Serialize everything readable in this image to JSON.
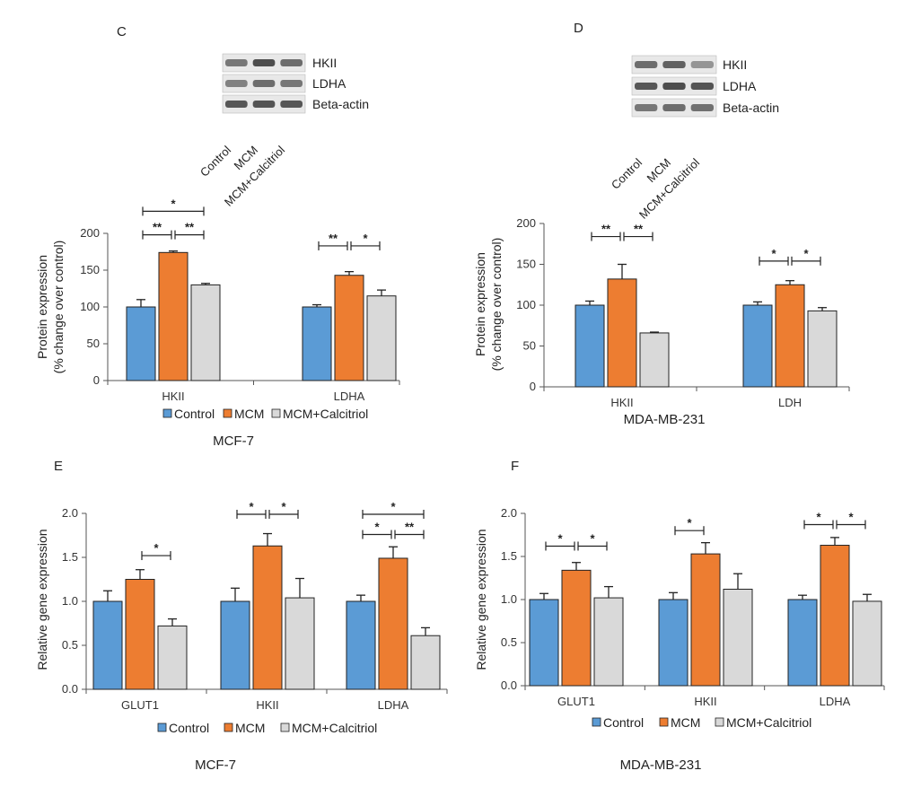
{
  "colors": {
    "control": "#5B9BD5",
    "mcm": "#ED7D31",
    "calcitriol": "#D9D9D9",
    "bar_stroke": "#222222",
    "axis": "#555555"
  },
  "legend_labels": [
    "Control",
    "MCM",
    "MCM+Calcitriol"
  ],
  "blots": [
    {
      "panel": "C",
      "bands": [
        "HKII",
        "LDHA",
        "Beta-actin"
      ],
      "lanes": [
        "Control",
        "MCM",
        "MCM+Calcitriol"
      ]
    },
    {
      "panel": "D",
      "bands": [
        "HKII",
        "LDHA",
        "Beta-actin"
      ],
      "lanes": [
        "Control",
        "MCM",
        "MCM+Calcitriol"
      ]
    }
  ],
  "chart_data": [
    {
      "panel": "C",
      "type": "bar",
      "caption": "MCF-7",
      "ylabel_lines": [
        "Protein expression",
        "(% change over control)"
      ],
      "categories": [
        "HKII",
        "LDHA"
      ],
      "ylim": [
        0,
        200
      ],
      "yticks": [
        "0",
        "50",
        "100",
        "150",
        "200"
      ],
      "series": [
        {
          "name": "Control",
          "values": [
            100,
            100
          ],
          "errors": [
            10,
            3
          ]
        },
        {
          "name": "MCM",
          "values": [
            174,
            143
          ],
          "errors": [
            2,
            5
          ]
        },
        {
          "name": "MCM+Calcitriol",
          "values": [
            130,
            115
          ],
          "errors": [
            2,
            8
          ]
        }
      ],
      "significance": [
        {
          "category": 0,
          "from": 0,
          "to": 2,
          "label": "*",
          "y": 230
        },
        {
          "category": 0,
          "from": 0,
          "to": 1,
          "label": "**",
          "y": 198
        },
        {
          "category": 0,
          "from": 1,
          "to": 2,
          "label": "**",
          "y": 198
        },
        {
          "category": 1,
          "from": 0,
          "to": 1,
          "label": "**",
          "y": 183
        },
        {
          "category": 1,
          "from": 1,
          "to": 2,
          "label": "*",
          "y": 183
        }
      ]
    },
    {
      "panel": "D",
      "type": "bar",
      "caption": "MDA-MB-231",
      "ylabel_lines": [
        "Protein expression",
        "(% change over control)"
      ],
      "categories": [
        "HKII",
        "LDH"
      ],
      "ylim": [
        0,
        200
      ],
      "yticks": [
        "0",
        "50",
        "100",
        "150",
        "200"
      ],
      "series": [
        {
          "name": "Control",
          "values": [
            100,
            100
          ],
          "errors": [
            5,
            4
          ]
        },
        {
          "name": "MCM",
          "values": [
            132,
            125
          ],
          "errors": [
            18,
            5
          ]
        },
        {
          "name": "MCM+Calcitriol",
          "values": [
            66,
            93
          ],
          "errors": [
            1,
            4
          ]
        }
      ],
      "significance": [
        {
          "category": 0,
          "from": 0,
          "to": 1,
          "label": "**",
          "y": 184
        },
        {
          "category": 0,
          "from": 1,
          "to": 2,
          "label": "**",
          "y": 184
        },
        {
          "category": 1,
          "from": 0,
          "to": 1,
          "label": "*",
          "y": 154
        },
        {
          "category": 1,
          "from": 1,
          "to": 2,
          "label": "*",
          "y": 154
        }
      ]
    },
    {
      "panel": "E",
      "type": "bar",
      "caption": "MCF-7",
      "ylabel_lines": [
        "Relative gene expression"
      ],
      "categories": [
        "GLUT1",
        "HKII",
        "LDHA"
      ],
      "ylim": [
        0,
        2.0
      ],
      "yticks": [
        "0.0",
        "0.5",
        "1.0",
        "1.5",
        "2.0"
      ],
      "series": [
        {
          "name": "Control",
          "values": [
            1.0,
            1.0,
            1.0
          ],
          "errors": [
            0.12,
            0.15,
            0.07
          ]
        },
        {
          "name": "MCM",
          "values": [
            1.25,
            1.63,
            1.49
          ],
          "errors": [
            0.11,
            0.14,
            0.13
          ]
        },
        {
          "name": "MCM+Calcitriol",
          "values": [
            0.72,
            1.04,
            0.61
          ],
          "errors": [
            0.08,
            0.22,
            0.09
          ]
        }
      ],
      "significance": [
        {
          "category": 0,
          "from": 1,
          "to": 2,
          "label": "*",
          "y": 1.52
        },
        {
          "category": 1,
          "from": 0,
          "to": 1,
          "label": "*",
          "y": 1.99
        },
        {
          "category": 1,
          "from": 1,
          "to": 2,
          "label": "*",
          "y": 1.99
        },
        {
          "category": 2,
          "from": 0,
          "to": 2,
          "label": "*",
          "y": 1.99
        },
        {
          "category": 2,
          "from": 0,
          "to": 1,
          "label": "*",
          "y": 1.76
        },
        {
          "category": 2,
          "from": 1,
          "to": 2,
          "label": "**",
          "y": 1.76
        }
      ]
    },
    {
      "panel": "F",
      "type": "bar",
      "caption": "MDA-MB-231",
      "ylabel_lines": [
        "Relative gene expression"
      ],
      "categories": [
        "GLUT1",
        "HKII",
        "LDHA"
      ],
      "ylim": [
        0,
        2.0
      ],
      "yticks": [
        "0.0",
        "0.5",
        "1.0",
        "1.5",
        "2.0"
      ],
      "series": [
        {
          "name": "Control",
          "values": [
            1.0,
            1.0,
            1.0
          ],
          "errors": [
            0.07,
            0.08,
            0.05
          ]
        },
        {
          "name": "MCM",
          "values": [
            1.34,
            1.53,
            1.63
          ],
          "errors": [
            0.09,
            0.13,
            0.09
          ]
        },
        {
          "name": "MCM+Calcitriol",
          "values": [
            1.02,
            1.12,
            0.98
          ],
          "errors": [
            0.13,
            0.18,
            0.08
          ]
        }
      ],
      "significance": [
        {
          "category": 0,
          "from": 0,
          "to": 1,
          "label": "*",
          "y": 1.62
        },
        {
          "category": 0,
          "from": 1,
          "to": 2,
          "label": "*",
          "y": 1.62
        },
        {
          "category": 1,
          "from": 0,
          "to": 1,
          "label": "*",
          "y": 1.8
        },
        {
          "category": 2,
          "from": 0,
          "to": 1,
          "label": "*",
          "y": 1.87
        },
        {
          "category": 2,
          "from": 1,
          "to": 2,
          "label": "*",
          "y": 1.87
        }
      ]
    }
  ]
}
